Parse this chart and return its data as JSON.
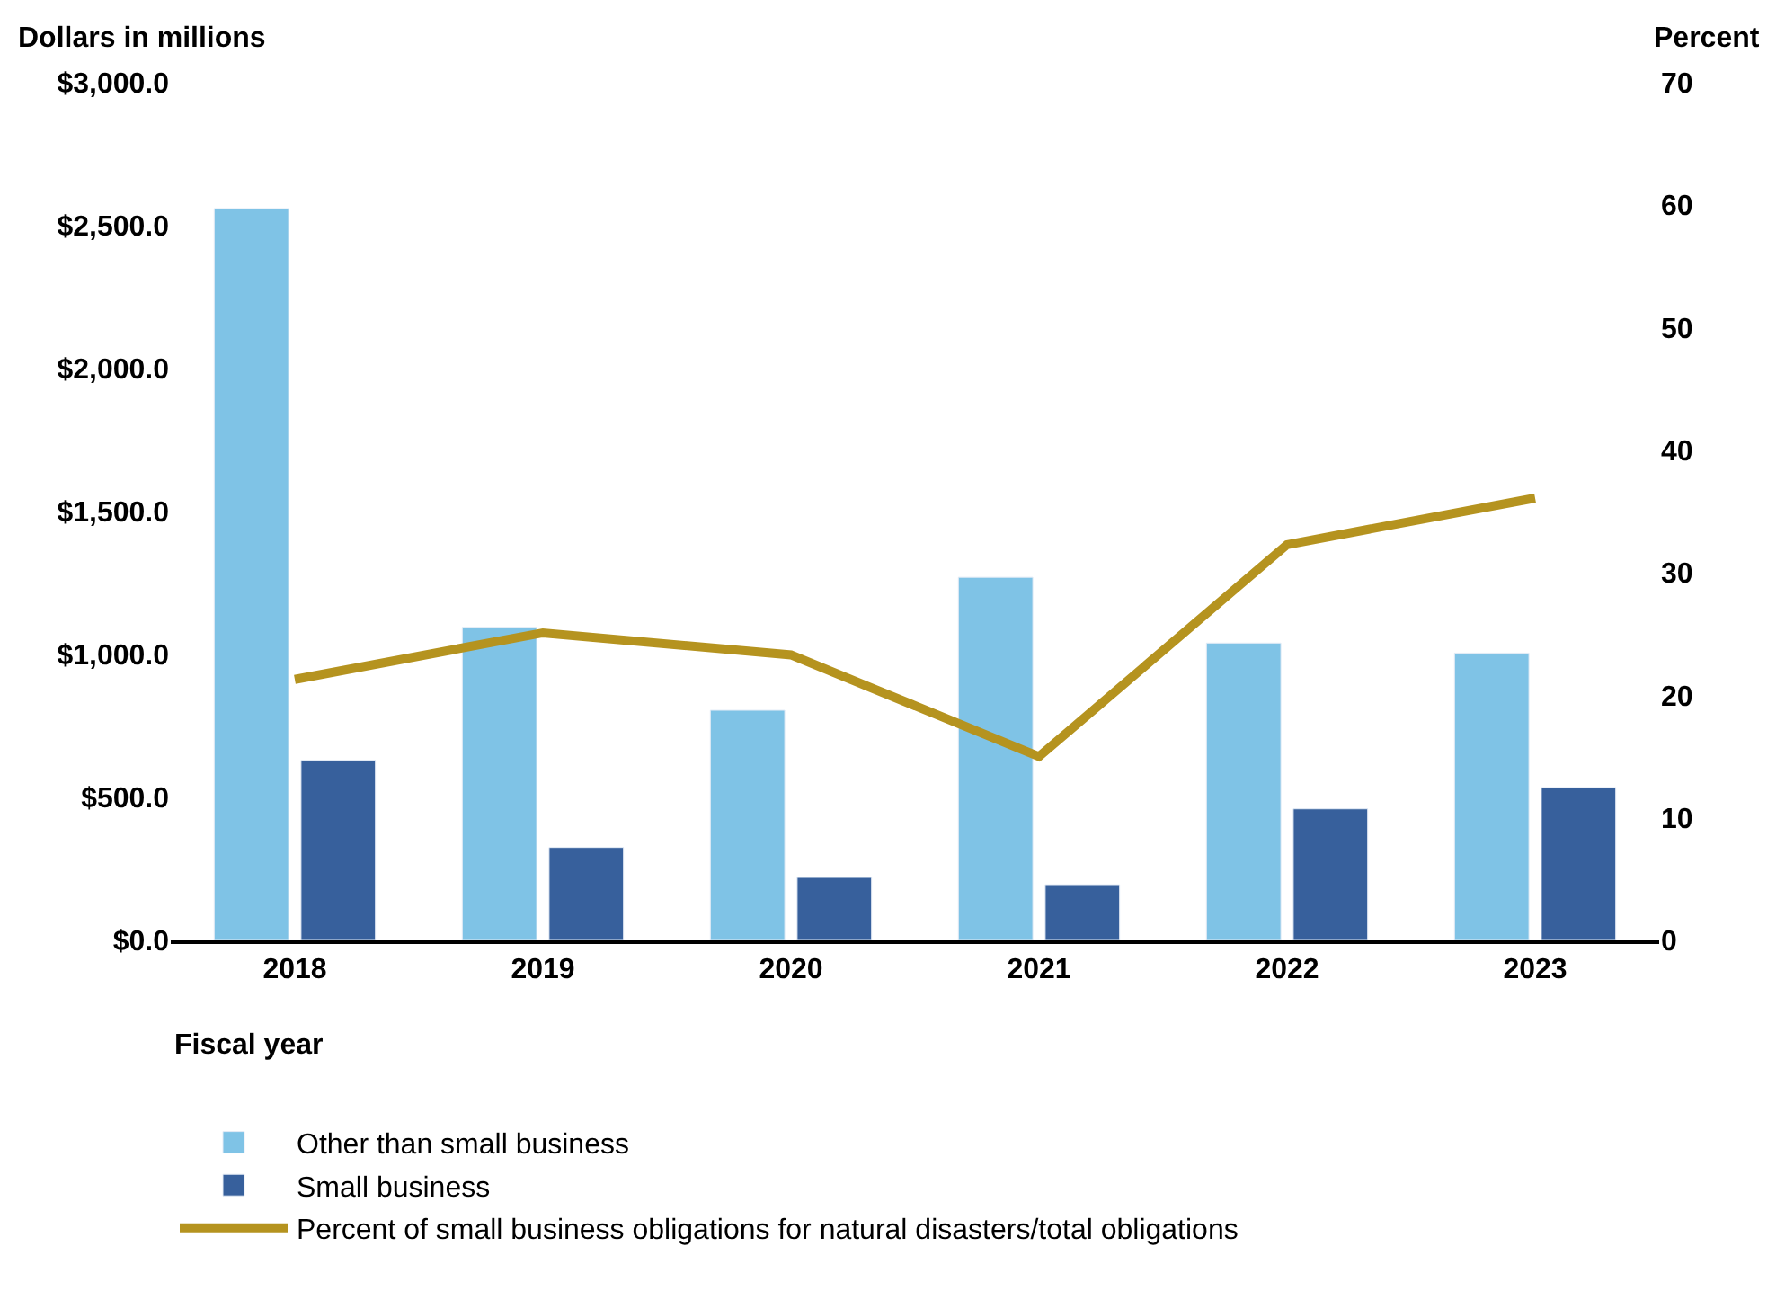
{
  "chart_data": {
    "type": "bar",
    "categories": [
      "2018",
      "2019",
      "2020",
      "2021",
      "2022",
      "2023"
    ],
    "xlabel": "Fiscal year",
    "ylabel": "Dollars in millions",
    "y2label": "Percent",
    "series": [
      {
        "name": "Other than small business",
        "color": "#7fc3e6",
        "values": [
          2560,
          1095,
          805,
          1270,
          1040,
          1005
        ]
      },
      {
        "name": "Small business",
        "color": "#37609c",
        "values": [
          630,
          325,
          220,
          195,
          460,
          535
        ]
      },
      {
        "name": "Percent of small business obligations for natural disasters/total obligations",
        "type": "line",
        "axis": "y2",
        "color": "#b5931f",
        "values": [
          21.3,
          25.1,
          23.3,
          15.0,
          32.3,
          36.1
        ]
      }
    ],
    "ylim": [
      0,
      3000
    ],
    "yticks": [
      {
        "value": 0,
        "label": "$0.0"
      },
      {
        "value": 500,
        "label": "$500.0"
      },
      {
        "value": 1000,
        "label": "$1,000.0"
      },
      {
        "value": 1500,
        "label": "$1,500.0"
      },
      {
        "value": 2000,
        "label": "$2,000.0"
      },
      {
        "value": 2500,
        "label": "$2,500.0"
      },
      {
        "value": 3000,
        "label": "$3,000.0"
      }
    ],
    "y2lim": [
      0,
      70
    ],
    "y2ticks": [
      0,
      10,
      20,
      30,
      40,
      50,
      60,
      70
    ],
    "legend": "bottom left",
    "marker": "none",
    "line_style": "solid"
  }
}
